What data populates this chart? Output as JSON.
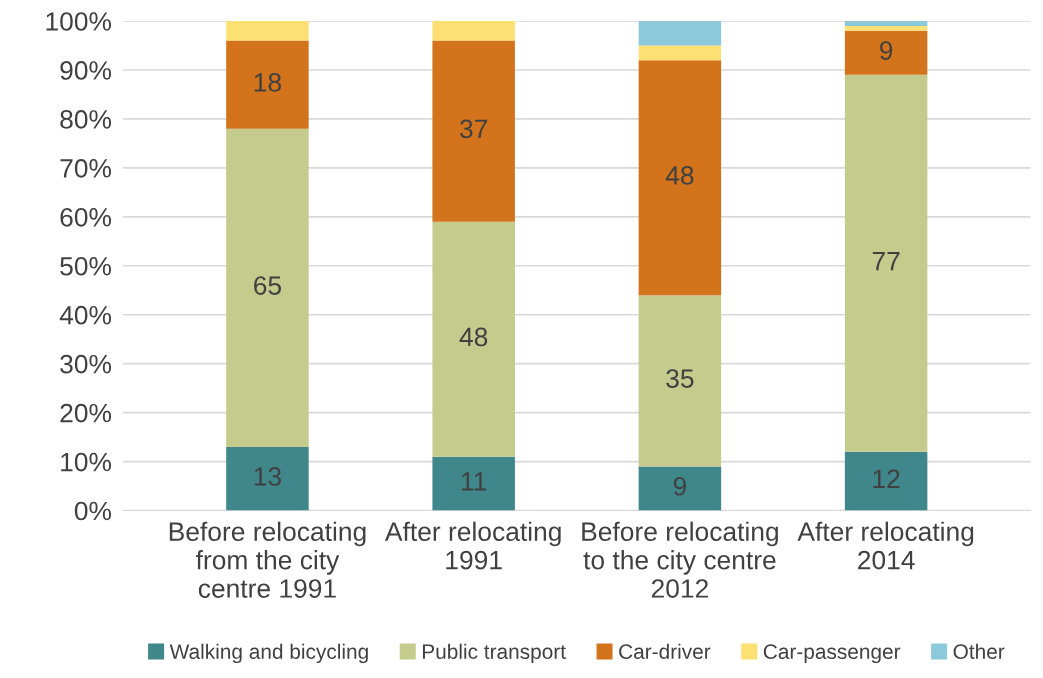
{
  "chart_data": {
    "type": "bar",
    "stacked": true,
    "categories": [
      "Before relocating\nfrom the city\ncentre 1991",
      "After relocating\n1991",
      "Before relocating\nto the city centre\n2012",
      "After relocating\n2014"
    ],
    "series": [
      {
        "name": "Walking and bicycling",
        "color": "#3f878b",
        "values": [
          13,
          11,
          9,
          12
        ],
        "value_labels": [
          "13",
          "11",
          "9",
          "12"
        ]
      },
      {
        "name": "Public transport",
        "color": "#c4cb8d",
        "values": [
          65,
          48,
          35,
          77
        ],
        "value_labels": [
          "65",
          "48",
          "35",
          "77"
        ]
      },
      {
        "name": "Car-driver",
        "color": "#d3731b",
        "values": [
          18,
          37,
          48,
          9
        ],
        "value_labels": [
          "18",
          "37",
          "48",
          "9"
        ]
      },
      {
        "name": "Car-passenger",
        "color": "#fde073",
        "values": [
          4,
          4,
          3,
          1
        ],
        "value_labels": [
          null,
          null,
          null,
          null
        ]
      },
      {
        "name": "Other",
        "color": "#8ccadb",
        "values": [
          0,
          0,
          5,
          1
        ],
        "value_labels": [
          null,
          null,
          null,
          null
        ]
      }
    ],
    "ylim": [
      0,
      100
    ],
    "yticks": [
      {
        "value": 0,
        "label": "0%"
      },
      {
        "value": 10,
        "label": "10%"
      },
      {
        "value": 20,
        "label": "20%"
      },
      {
        "value": 30,
        "label": "30%"
      },
      {
        "value": 40,
        "label": "40%"
      },
      {
        "value": 50,
        "label": "50%"
      },
      {
        "value": 60,
        "label": "60%"
      },
      {
        "value": 70,
        "label": "70%"
      },
      {
        "value": 80,
        "label": "80%"
      },
      {
        "value": 90,
        "label": "90%"
      },
      {
        "value": 100,
        "label": "100%"
      }
    ],
    "grid": "y",
    "legend": "bottom"
  }
}
